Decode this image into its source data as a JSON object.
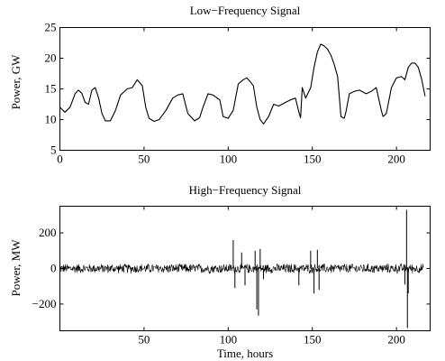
{
  "chart_data": [
    {
      "type": "line",
      "title": "Low−Frequency Signal",
      "xlabel": "",
      "ylabel": "Power, GW",
      "xlim": [
        0,
        220
      ],
      "ylim": [
        5,
        25
      ],
      "xticks": [
        0,
        50,
        100,
        150,
        200
      ],
      "yticks": [
        5,
        10,
        15,
        20,
        25
      ],
      "xtick_labels": [
        "0",
        "50",
        "100",
        "150",
        "200"
      ],
      "ytick_labels": [
        "5",
        "10",
        "15",
        "20",
        "25"
      ],
      "grid": false,
      "series": [
        {
          "x": [
            0,
            3,
            6,
            9,
            11,
            13,
            15,
            17,
            19,
            21,
            23,
            25,
            27,
            30,
            33,
            36,
            40,
            43,
            46,
            49,
            51,
            53,
            56,
            59,
            63,
            67,
            70,
            73,
            76,
            80,
            83,
            85,
            88,
            91,
            93,
            95,
            97,
            100,
            103,
            106,
            109,
            111,
            113,
            115,
            117,
            119,
            121,
            124,
            127,
            130,
            134,
            137,
            140,
            142,
            143,
            144,
            146,
            149,
            151,
            153,
            155,
            157,
            159,
            161,
            163,
            165,
            167,
            169,
            170,
            172,
            175,
            178,
            182,
            185,
            188,
            191,
            192,
            194,
            197,
            200,
            203,
            205,
            207,
            209,
            211,
            213,
            215,
            217
          ],
          "y": [
            12,
            11.2,
            12,
            14.2,
            14.8,
            14.3,
            12.8,
            12.5,
            14.8,
            15.2,
            13.5,
            11,
            9.8,
            9.8,
            11.5,
            14,
            15,
            15.2,
            16.5,
            15.5,
            12,
            10.2,
            9.7,
            10,
            11.5,
            13.5,
            14,
            14.2,
            11,
            9.8,
            10.3,
            12,
            14.2,
            14,
            13.6,
            13.2,
            10.5,
            10.2,
            11.5,
            15.8,
            16.5,
            16.8,
            16.2,
            15.5,
            12,
            10,
            9.3,
            10.5,
            12.5,
            12.2,
            12.8,
            13.2,
            13.5,
            11.2,
            10.3,
            15.2,
            13.5,
            15.2,
            18.5,
            21,
            22.3,
            22,
            21.5,
            20.5,
            19,
            17,
            10.5,
            10.2,
            11.3,
            14.2,
            14.6,
            14.8,
            14.2,
            14.6,
            15.2,
            11.5,
            10.5,
            11,
            15.2,
            16.8,
            17,
            16.5,
            18.5,
            19.2,
            19.2,
            18.5,
            16.5,
            13.8
          ]
        }
      ]
    },
    {
      "type": "line",
      "title": "High−Frequency Signal",
      "xlabel": "Time, hours",
      "ylabel": "Power, MW",
      "xlim": [
        0,
        220
      ],
      "ylim": [
        -350,
        350
      ],
      "xticks": [
        50,
        100,
        150,
        200
      ],
      "yticks": [
        -200,
        0,
        200
      ],
      "xtick_labels": [
        "50",
        "100",
        "150",
        "200"
      ],
      "ytick_labels": [
        "−200",
        "0",
        "200"
      ],
      "grid": false,
      "series": [
        {
          "x_range": [
            0,
            216
          ],
          "noise_amplitude": 30,
          "spikes": [
            {
              "x": 103,
              "value": 160
            },
            {
              "x": 104,
              "value": -110
            },
            {
              "x": 108,
              "value": 90
            },
            {
              "x": 110,
              "value": -95
            },
            {
              "x": 116,
              "value": 100
            },
            {
              "x": 117,
              "value": -230
            },
            {
              "x": 118,
              "value": -265
            },
            {
              "x": 119,
              "value": 110
            },
            {
              "x": 121,
              "value": -60
            },
            {
              "x": 142,
              "value": -95
            },
            {
              "x": 149,
              "value": 100
            },
            {
              "x": 151,
              "value": -140
            },
            {
              "x": 153,
              "value": 105
            },
            {
              "x": 154,
              "value": -120
            },
            {
              "x": 205,
              "value": -90
            },
            {
              "x": 206,
              "value": 330
            },
            {
              "x": 206.5,
              "value": -335
            },
            {
              "x": 207,
              "value": -140
            }
          ]
        }
      ]
    }
  ]
}
